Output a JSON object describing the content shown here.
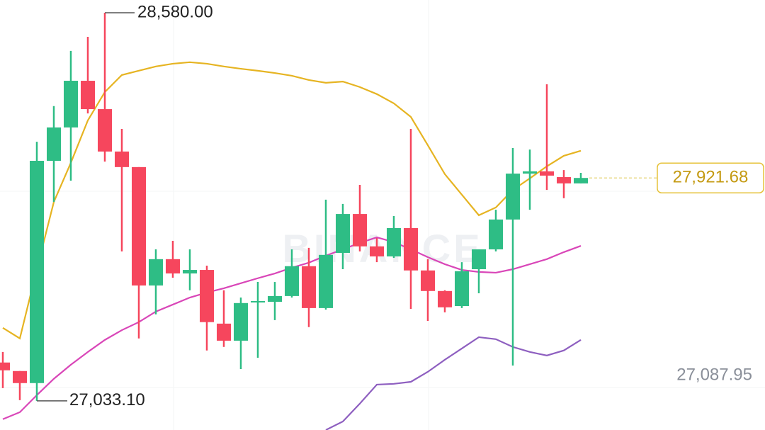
{
  "chart_data": {
    "type": "candlestick",
    "watermark": "BINANCE",
    "ylim": [
      26917,
      28631
    ],
    "up_color": "#2ebd85",
    "down_color": "#f6465d",
    "open": [
      27186,
      27152,
      27104,
      27990,
      28123,
      28309,
      28196,
      28027,
      27965,
      27493,
      27598,
      27541,
      27555,
      27341,
      27273,
      27428,
      27428,
      27451,
      27570,
      27403,
      27623,
      27778,
      27649,
      27609,
      27722,
      27553,
      27471,
      27411,
      27558,
      27637,
      27756,
      27939,
      27948,
      27925,
      27900
    ],
    "high": [
      27228,
      27152,
      28066,
      28208,
      28428,
      28484,
      28580,
      28117,
      27965,
      27637,
      27671,
      27637,
      27572,
      27474,
      27445,
      27507,
      27507,
      27637,
      27643,
      27835,
      27818,
      27894,
      27682,
      27770,
      28117,
      27598,
      27474,
      27586,
      27637,
      27795,
      28041,
      28035,
      28295,
      27953,
      27942
    ],
    "low": [
      27084,
      27036,
      27033.1,
      27826,
      27911,
      28179,
      27987,
      27629,
      27282,
      27378,
      27524,
      27474,
      27234,
      27248,
      27160,
      27205,
      27355,
      27445,
      27327,
      27397,
      27558,
      27629,
      27586,
      27603,
      27400,
      27352,
      27386,
      27403,
      27462,
      27629,
      27174,
      27795,
      27874,
      27841,
      27900
    ],
    "close": [
      27155,
      27104,
      27990,
      28123,
      28309,
      28196,
      28027,
      27965,
      27493,
      27598,
      27541,
      27555,
      27347,
      27273,
      27423,
      27431,
      27451,
      27570,
      27403,
      27615,
      27778,
      27649,
      27609,
      27722,
      27553,
      27471,
      27406,
      27550,
      27637,
      27756,
      27939,
      27948,
      27931,
      27900,
      27921.68
    ],
    "bands": [
      {
        "color": "#e6b422",
        "values": [
          27324,
          27282,
          27558,
          27826,
          27982,
          28151,
          28264,
          28332,
          28349,
          28366,
          28377,
          28383,
          28377,
          28366,
          28357,
          28349,
          28340,
          28329,
          28312,
          28301,
          28306,
          28284,
          28256,
          28219,
          28165,
          28052,
          27937,
          27855,
          27773,
          27804,
          27874,
          27920,
          27968,
          28010,
          28030
        ]
      },
      {
        "color": "#d946b8",
        "values": [
          26960,
          26988,
          27056,
          27121,
          27177,
          27228,
          27276,
          27315,
          27347,
          27389,
          27417,
          27445,
          27465,
          27482,
          27502,
          27522,
          27541,
          27564,
          27584,
          27612,
          27637,
          27663,
          27685,
          27666,
          27637,
          27606,
          27578,
          27555,
          27547,
          27544,
          27558,
          27578,
          27598,
          27626,
          27651
        ]
      },
      {
        "color": "#8e5fc0",
        "values": [
          null,
          null,
          null,
          null,
          null,
          null,
          null,
          null,
          null,
          null,
          null,
          null,
          null,
          null,
          null,
          null,
          null,
          null,
          null,
          26917,
          26951,
          27022,
          27098,
          27101,
          27109,
          27149,
          27197,
          27242,
          27287,
          27279,
          27248,
          27228,
          27214,
          27234,
          27276
        ]
      }
    ],
    "high_label": {
      "value": 28580,
      "label": "28,580.00"
    },
    "low_label": {
      "value": 27033.1,
      "label": "27,033.10"
    },
    "last_price": {
      "value": 27921.68,
      "label": "27,921.68"
    },
    "scale_label": "27,087.95"
  }
}
